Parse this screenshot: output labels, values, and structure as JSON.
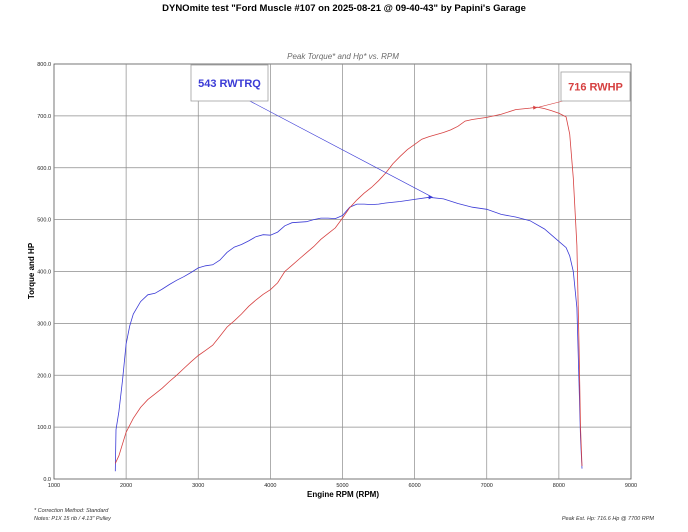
{
  "page_title": "DYNOmite test \"Ford Muscle #107 on 2025-08-21 @ 09-40-43\" by Papini's Garage",
  "footer": {
    "correction": "* Correction Method: Standard",
    "notes": "Notes: P1X 15 rib / 4.13\" Pulley",
    "peak": "Peak Est. Hp: 716.6 Hp @ 7700 RPM"
  },
  "colors": {
    "torque": "#3b3bd6",
    "hp": "#d64040",
    "grid": "#8c8c8c"
  },
  "chart_data": {
    "type": "line",
    "title": "Peak Torque* and Hp* vs. RPM",
    "xlabel": "Engine RPM (RPM)",
    "ylabel": "Torque and HP",
    "xlim": [
      1000,
      9000
    ],
    "ylim": [
      0,
      800
    ],
    "x_ticks": [
      "1000",
      "2000",
      "3000",
      "4000",
      "5000",
      "6000",
      "7000",
      "8000",
      "9000"
    ],
    "y_ticks": [
      "0.0",
      "100.0",
      "200.0",
      "300.0",
      "400.0",
      "500.0",
      "600.0",
      "700.0",
      "800.0"
    ],
    "grid": true,
    "series": [
      {
        "name": "Torque",
        "points": [
          [
            1850,
            15
          ],
          [
            1860,
            95
          ],
          [
            1900,
            130
          ],
          [
            1950,
            190
          ],
          [
            2000,
            260
          ],
          [
            2050,
            295
          ],
          [
            2100,
            318
          ],
          [
            2200,
            342
          ],
          [
            2300,
            355
          ],
          [
            2400,
            358
          ],
          [
            2500,
            366
          ],
          [
            2600,
            375
          ],
          [
            2700,
            383
          ],
          [
            2800,
            390
          ],
          [
            2900,
            398
          ],
          [
            3000,
            407
          ],
          [
            3100,
            411
          ],
          [
            3200,
            413
          ],
          [
            3300,
            422
          ],
          [
            3400,
            437
          ],
          [
            3500,
            447
          ],
          [
            3600,
            452
          ],
          [
            3700,
            459
          ],
          [
            3800,
            467
          ],
          [
            3900,
            471
          ],
          [
            4000,
            470
          ],
          [
            4100,
            476
          ],
          [
            4200,
            488
          ],
          [
            4300,
            494
          ],
          [
            4400,
            495
          ],
          [
            4500,
            496
          ],
          [
            4600,
            500
          ],
          [
            4700,
            503
          ],
          [
            4800,
            503
          ],
          [
            4900,
            502
          ],
          [
            5000,
            508
          ],
          [
            5100,
            524
          ],
          [
            5200,
            530
          ],
          [
            5300,
            530
          ],
          [
            5400,
            529
          ],
          [
            5500,
            530
          ],
          [
            5600,
            532
          ],
          [
            5800,
            535
          ],
          [
            6000,
            539
          ],
          [
            6200,
            543
          ],
          [
            6400,
            540
          ],
          [
            6600,
            531
          ],
          [
            6800,
            524
          ],
          [
            7000,
            520
          ],
          [
            7200,
            510
          ],
          [
            7400,
            505
          ],
          [
            7600,
            498
          ],
          [
            7800,
            482
          ],
          [
            7900,
            470
          ],
          [
            8000,
            458
          ],
          [
            8100,
            446
          ],
          [
            8150,
            430
          ],
          [
            8200,
            400
          ],
          [
            8250,
            330
          ],
          [
            8280,
            180
          ],
          [
            8300,
            80
          ],
          [
            8320,
            20
          ]
        ]
      },
      {
        "name": "HP",
        "points": [
          [
            1850,
            30
          ],
          [
            1900,
            45
          ],
          [
            2000,
            90
          ],
          [
            2100,
            117
          ],
          [
            2200,
            138
          ],
          [
            2300,
            153
          ],
          [
            2400,
            164
          ],
          [
            2500,
            175
          ],
          [
            2600,
            188
          ],
          [
            2700,
            200
          ],
          [
            2800,
            213
          ],
          [
            2900,
            226
          ],
          [
            3000,
            238
          ],
          [
            3100,
            248
          ],
          [
            3200,
            258
          ],
          [
            3300,
            275
          ],
          [
            3400,
            293
          ],
          [
            3500,
            305
          ],
          [
            3600,
            318
          ],
          [
            3700,
            333
          ],
          [
            3800,
            345
          ],
          [
            3900,
            356
          ],
          [
            4000,
            365
          ],
          [
            4100,
            378
          ],
          [
            4200,
            400
          ],
          [
            4300,
            412
          ],
          [
            4400,
            424
          ],
          [
            4500,
            436
          ],
          [
            4600,
            448
          ],
          [
            4700,
            462
          ],
          [
            4800,
            473
          ],
          [
            4900,
            484
          ],
          [
            5000,
            503
          ],
          [
            5100,
            523
          ],
          [
            5200,
            538
          ],
          [
            5300,
            551
          ],
          [
            5400,
            562
          ],
          [
            5500,
            575
          ],
          [
            5600,
            590
          ],
          [
            5700,
            608
          ],
          [
            5800,
            622
          ],
          [
            5900,
            635
          ],
          [
            6000,
            645
          ],
          [
            6100,
            655
          ],
          [
            6200,
            660
          ],
          [
            6400,
            668
          ],
          [
            6500,
            673
          ],
          [
            6600,
            680
          ],
          [
            6700,
            690
          ],
          [
            6800,
            693
          ],
          [
            7000,
            697
          ],
          [
            7200,
            703
          ],
          [
            7400,
            712
          ],
          [
            7600,
            715
          ],
          [
            7700,
            717
          ],
          [
            7800,
            714
          ],
          [
            7900,
            710
          ],
          [
            8000,
            705
          ],
          [
            8100,
            698
          ],
          [
            8150,
            665
          ],
          [
            8200,
            580
          ],
          [
            8250,
            450
          ],
          [
            8280,
            250
          ],
          [
            8300,
            100
          ],
          [
            8320,
            25
          ]
        ]
      }
    ],
    "annotations": [
      {
        "label": "543 RWTRQ",
        "series": "Torque",
        "x": 6250,
        "y": 543
      },
      {
        "label": "716 RWHP",
        "series": "HP",
        "x": 7700,
        "y": 716
      }
    ]
  }
}
